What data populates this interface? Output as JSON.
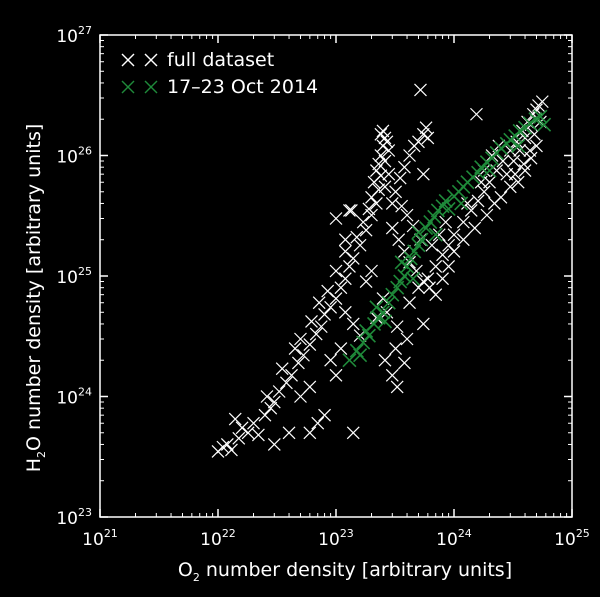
{
  "chart_data": {
    "type": "scatter",
    "title": "",
    "xlabel": "O2 number density [arbitrary units]",
    "xlabel_parts": {
      "pre": "O",
      "sub": "2",
      "post": " number density [arbitrary units]"
    },
    "ylabel": "H2O number density [arbitrary units]",
    "ylabel_parts": {
      "pre": "H",
      "sub": "2",
      "post": "O number density [arbitrary units]"
    },
    "xscale": "log",
    "yscale": "log",
    "xlim": [
      1e+21,
      1e+25
    ],
    "ylim": [
      1e+23,
      1e+27
    ],
    "x_ticks": [
      {
        "base": "10",
        "exp": "21",
        "value": 1e+21
      },
      {
        "base": "10",
        "exp": "22",
        "value": 1e+22
      },
      {
        "base": "10",
        "exp": "23",
        "value": 1e+23
      },
      {
        "base": "10",
        "exp": "24",
        "value": 1e+24
      },
      {
        "base": "10",
        "exp": "25",
        "value": 1e+25
      }
    ],
    "y_ticks": [
      {
        "base": "10",
        "exp": "23",
        "value": 1e+23
      },
      {
        "base": "10",
        "exp": "24",
        "value": 1e+24
      },
      {
        "base": "10",
        "exp": "25",
        "value": 1e+25
      },
      {
        "base": "10",
        "exp": "26",
        "value": 1e+26
      },
      {
        "base": "10",
        "exp": "27",
        "value": 1e+27
      }
    ],
    "grid": false,
    "legend_position": "top-left",
    "series": [
      {
        "name": "full dataset",
        "color": "#ffffff",
        "marker": "x",
        "points": [
          [
            1e+22,
            3.5e+23
          ],
          [
            1.2e+22,
            4e+23
          ],
          [
            1.5e+22,
            4.5e+23
          ],
          [
            1.1e+22,
            3.8e+23
          ],
          [
            1.3e+22,
            3.6e+23
          ],
          [
            1.8e+22,
            5e+23
          ],
          [
            2e+22,
            6e+23
          ],
          [
            1.6e+22,
            5.5e+23
          ],
          [
            2.2e+22,
            4.8e+23
          ],
          [
            2.5e+22,
            7e+23
          ],
          [
            1.4e+22,
            6.5e+23
          ],
          [
            2.8e+22,
            8e+23
          ],
          [
            3e+22,
            9e+23
          ],
          [
            3.3e+22,
            1.1e+24
          ],
          [
            2.6e+22,
            1e+24
          ],
          [
            3.8e+22,
            1.3e+24
          ],
          [
            4.2e+22,
            1.5e+24
          ],
          [
            3.5e+22,
            1.7e+24
          ],
          [
            4.8e+22,
            1.9e+24
          ],
          [
            5.3e+22,
            2.2e+24
          ],
          [
            4.5e+22,
            2.5e+24
          ],
          [
            6e+22,
            2.7e+24
          ],
          [
            5e+22,
            3e+24
          ],
          [
            6.8e+22,
            3.3e+24
          ],
          [
            7.5e+22,
            3.8e+24
          ],
          [
            6.2e+22,
            4.2e+24
          ],
          [
            8e+22,
            4.8e+24
          ],
          [
            9e+22,
            5.5e+24
          ],
          [
            7.2e+22,
            6e+24
          ],
          [
            1e+23,
            6.5e+24
          ],
          [
            8.5e+22,
            7.5e+24
          ],
          [
            1.1e+23,
            8e+24
          ],
          [
            1.2e+23,
            9.5e+24
          ],
          [
            1e+23,
            1.1e+25
          ],
          [
            1.3e+23,
            1.2e+25
          ],
          [
            1.4e+23,
            1.4e+25
          ],
          [
            1.2e+23,
            1.6e+25
          ],
          [
            1.6e+23,
            1.8e+25
          ],
          [
            1.5e+23,
            2.1e+25
          ],
          [
            1.8e+23,
            2.4e+25
          ],
          [
            1.7e+23,
            2.8e+25
          ],
          [
            2e+23,
            3.2e+25
          ],
          [
            1.9e+23,
            3.6e+25
          ],
          [
            2.2e+23,
            4e+25
          ],
          [
            2e+23,
            4.5e+25
          ],
          [
            2.3e+23,
            5.2e+25
          ],
          [
            2.1e+23,
            6e+25
          ],
          [
            2.4e+23,
            6.8e+25
          ],
          [
            2.2e+23,
            7.5e+25
          ],
          [
            2.3e+23,
            8.5e+25
          ],
          [
            2.4e+23,
            1e+26
          ],
          [
            2.5e+23,
            1.2e+26
          ],
          [
            2.6e+23,
            1.4e+26
          ],
          [
            2.5e+23,
            1.6e+26
          ],
          [
            2.7e+23,
            1.3e+26
          ],
          [
            2.8e+23,
            1.1e+26
          ],
          [
            2.4e+23,
            1.5e+26
          ],
          [
            2.6e+23,
            9e+25
          ],
          [
            2.8e+23,
            7e+25
          ],
          [
            2.6e+23,
            5.5e+25
          ],
          [
            3e+23,
            4e+25
          ],
          [
            3.2e+23,
            5e+25
          ],
          [
            3.5e+23,
            6.5e+25
          ],
          [
            3.8e+23,
            8e+25
          ],
          [
            4.2e+23,
            1e+26
          ],
          [
            4.6e+23,
            1.2e+26
          ],
          [
            5e+23,
            1.3e+26
          ],
          [
            5.5e+23,
            1.5e+26
          ],
          [
            6e+23,
            1.4e+26
          ],
          [
            5.8e+23,
            1.7e+26
          ],
          [
            3e+23,
            2.5e+25
          ],
          [
            3.4e+23,
            2e+25
          ],
          [
            3.8e+23,
            1.6e+25
          ],
          [
            4.2e+23,
            1.3e+25
          ],
          [
            4.8e+23,
            1.1e+25
          ],
          [
            5.5e+23,
            9e+24
          ],
          [
            6.2e+23,
            8e+24
          ],
          [
            7e+23,
            7e+24
          ],
          [
            8e+23,
            1.5e+25
          ],
          [
            9e+23,
            1.8e+25
          ],
          [
            1e+24,
            2.2e+25
          ],
          [
            1.2e+24,
            2.8e+25
          ],
          [
            1.4e+24,
            3.5e+25
          ],
          [
            1.6e+24,
            4.2e+25
          ],
          [
            1.8e+24,
            5e+25
          ],
          [
            2e+24,
            6e+25
          ],
          [
            2.3e+24,
            7.5e+25
          ],
          [
            2.6e+24,
            9e+25
          ],
          [
            3e+24,
            1.1e+26
          ],
          [
            3.4e+24,
            1.3e+26
          ],
          [
            3.8e+24,
            1.6e+26
          ],
          [
            4.2e+24,
            1.9e+26
          ],
          [
            4.7e+24,
            2.2e+26
          ],
          [
            5.2e+24,
            2.6e+26
          ],
          [
            5.6e+24,
            2.8e+26
          ],
          [
            5e+24,
            2.4e+26
          ],
          [
            4.5e+24,
            1.8e+26
          ],
          [
            4e+24,
            1.4e+26
          ],
          [
            3.6e+24,
            1.1e+26
          ],
          [
            3.2e+24,
            9e+25
          ],
          [
            2.8e+24,
            7e+25
          ],
          [
            3.5e+24,
            6e+25
          ],
          [
            4e+24,
            7.5e+25
          ],
          [
            4.5e+24,
            9.5e+25
          ],
          [
            5e+24,
            1.2e+26
          ],
          [
            3e+24,
            5.5e+25
          ],
          [
            2.5e+24,
            4.5e+25
          ],
          [
            2.2e+24,
            4e+25
          ],
          [
            1.9e+24,
            3.2e+25
          ],
          [
            1.5e+24,
            2.5e+25
          ],
          [
            1.2e+24,
            2e+25
          ],
          [
            1e+24,
            1.6e+25
          ],
          [
            9e+23,
            1.2e+25
          ],
          [
            8e+23,
            9.5e+24
          ],
          [
            7e+23,
            1.2e+25
          ],
          [
            6.5e+23,
            1.8e+25
          ],
          [
            7.5e+23,
            2.2e+25
          ],
          [
            8.5e+23,
            2.8e+25
          ],
          [
            5.2e+23,
            2e+25
          ],
          [
            4.5e+23,
            2.6e+25
          ],
          [
            4e+23,
            3.2e+25
          ],
          [
            3.6e+23,
            3.8e+25
          ],
          [
            1.2e+23,
            5e+24
          ],
          [
            1.4e+23,
            4e+24
          ],
          [
            1.6e+23,
            3.2e+24
          ],
          [
            1.3e+23,
            3.5e+25
          ],
          [
            1e+23,
            3e+25
          ],
          [
            1.2e+23,
            2e+25
          ],
          [
            1.35e+23,
            3.5e+25
          ],
          [
            2.6e+23,
            2e+24
          ],
          [
            3e+23,
            1.5e+24
          ],
          [
            3.2e+23,
            2.5e+24
          ],
          [
            3.8e+23,
            1.9e+24
          ],
          [
            4e+23,
            3e+24
          ],
          [
            3.3e+23,
            1.2e+24
          ],
          [
            1.4e+23,
            5e+23
          ],
          [
            5.2e+23,
            3.5e+26
          ],
          [
            1.55e+24,
            2.2e+26
          ],
          [
            5.5e+23,
            7e+25
          ],
          [
            6e+22,
            5e+23
          ],
          [
            7e+22,
            6e+23
          ],
          [
            4e+22,
            5e+23
          ],
          [
            3e+22,
            4e+23
          ],
          [
            8e+22,
            7e+23
          ],
          [
            1e+23,
            1.5e+24
          ],
          [
            9e+22,
            2e+24
          ],
          [
            1.1e+23,
            2.5e+24
          ],
          [
            6e+22,
            1.2e+24
          ],
          [
            5e+22,
            1e+24
          ],
          [
            2.5e+23,
            6.5e+24
          ],
          [
            2.7e+23,
            5e+24
          ],
          [
            2.2e+23,
            4.5e+24
          ],
          [
            1.8e+23,
            9e+24
          ],
          [
            2e+23,
            1.1e+25
          ],
          [
            3.3e+23,
            3.8e+24
          ],
          [
            5e+23,
            8e+24
          ],
          [
            6e+23,
            9.5e+24
          ],
          [
            4.2e+23,
            6e+24
          ],
          [
            5.5e+23,
            4e+24
          ],
          [
            1.8e+24,
            7.5e+25
          ],
          [
            2.1e+24,
            1e+26
          ],
          [
            2.4e+24,
            1.2e+26
          ],
          [
            1.7e+24,
            6e+25
          ],
          [
            1.3e+24,
            4e+25
          ],
          [
            4.8e+24,
            1.5e+26
          ],
          [
            5.4e+24,
            1.9e+26
          ],
          [
            4.4e+24,
            1.1e+26
          ],
          [
            3.9e+24,
            8.5e+25
          ],
          [
            3.3e+24,
            7e+25
          ]
        ]
      },
      {
        "name": "17–23 Oct 2014",
        "color": "#1f8a3a",
        "marker": "x",
        "points": [
          [
            1.3e+23,
            2e+24
          ],
          [
            1.5e+23,
            2.4e+24
          ],
          [
            1.7e+23,
            2.8e+24
          ],
          [
            1.9e+23,
            3.2e+24
          ],
          [
            1.8e+23,
            3.5e+24
          ],
          [
            2.1e+23,
            4e+24
          ],
          [
            2.3e+23,
            4.5e+24
          ],
          [
            2.5e+23,
            5e+24
          ],
          [
            2.2e+23,
            5.5e+24
          ],
          [
            2.8e+23,
            6e+24
          ],
          [
            3e+23,
            7e+24
          ],
          [
            3.3e+23,
            8e+24
          ],
          [
            3.5e+23,
            9e+24
          ],
          [
            3.8e+23,
            1e+25
          ],
          [
            4e+23,
            1.2e+25
          ],
          [
            3.6e+23,
            1.3e+25
          ],
          [
            4.3e+23,
            1.4e+25
          ],
          [
            4.6e+23,
            1.6e+25
          ],
          [
            5e+23,
            1.8e+25
          ],
          [
            5.3e+23,
            2e+25
          ],
          [
            5e+23,
            2.3e+25
          ],
          [
            5.8e+23,
            2.5e+25
          ],
          [
            6.3e+23,
            2.8e+25
          ],
          [
            6.8e+23,
            3.1e+25
          ],
          [
            7.3e+23,
            3.5e+25
          ],
          [
            8e+23,
            3.8e+25
          ],
          [
            8.5e+23,
            4.2e+25
          ],
          [
            9e+23,
            3.6e+25
          ],
          [
            1e+24,
            4.6e+25
          ],
          [
            1.1e+24,
            5e+25
          ],
          [
            1.2e+24,
            5.5e+25
          ],
          [
            1.3e+24,
            6e+25
          ],
          [
            1.45e+24,
            6.6e+25
          ],
          [
            1.6e+24,
            7.2e+25
          ],
          [
            1.7e+24,
            8e+25
          ],
          [
            1.9e+24,
            8.8e+25
          ],
          [
            2.1e+24,
            9.5e+25
          ],
          [
            2.3e+24,
            1.05e+26
          ],
          [
            2.5e+24,
            1.15e+26
          ],
          [
            2.8e+24,
            1.25e+26
          ],
          [
            3e+24,
            1.35e+26
          ],
          [
            3.3e+24,
            1.45e+26
          ],
          [
            3.6e+24,
            1.6e+26
          ],
          [
            4e+24,
            1.7e+26
          ],
          [
            4.4e+24,
            1.85e+26
          ],
          [
            4.9e+24,
            2e+26
          ],
          [
            5.4e+24,
            2.1e+26
          ],
          [
            5.8e+24,
            1.8e+26
          ],
          [
            3.5e+24,
            1.2e+26
          ],
          [
            2e+24,
            7.5e+25
          ],
          [
            1.15e+24,
            4e+25
          ],
          [
            7e+23,
            2.2e+25
          ],
          [
            4.5e+23,
            9.5e+24
          ],
          [
            2.6e+23,
            4.2e+24
          ],
          [
            1.6e+23,
            2.2e+24
          ]
        ]
      }
    ]
  }
}
